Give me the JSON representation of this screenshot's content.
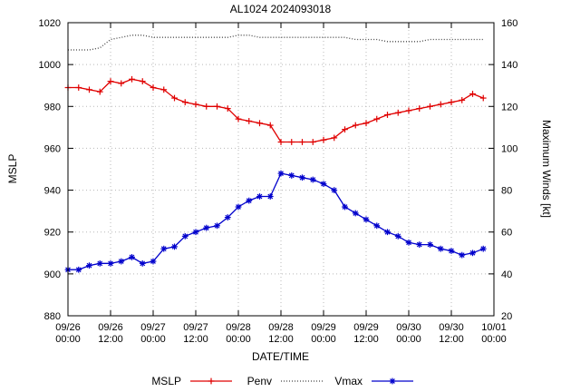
{
  "chart_data": {
    "type": "line",
    "title": "AL1024 2024093018",
    "xlabel": "DATE/TIME",
    "ylabel_left": "MSLP",
    "ylabel_right": "Maximum Winds [kt]",
    "y_left_range": [
      880,
      1020
    ],
    "y_left_ticks": [
      880,
      900,
      920,
      940,
      960,
      980,
      1000,
      1020
    ],
    "y_right_range": [
      20,
      160
    ],
    "y_right_ticks": [
      20,
      40,
      60,
      80,
      100,
      120,
      140,
      160
    ],
    "x_range": [
      0,
      120
    ],
    "x_ticks": [
      {
        "hour": 0,
        "line1": "09/26",
        "line2": "00:00"
      },
      {
        "hour": 12,
        "line1": "09/26",
        "line2": "12:00"
      },
      {
        "hour": 24,
        "line1": "09/27",
        "line2": "00:00"
      },
      {
        "hour": 36,
        "line1": "09/27",
        "line2": "12:00"
      },
      {
        "hour": 48,
        "line1": "09/28",
        "line2": "00:00"
      },
      {
        "hour": 60,
        "line1": "09/28",
        "line2": "12:00"
      },
      {
        "hour": 72,
        "line1": "09/29",
        "line2": "00:00"
      },
      {
        "hour": 84,
        "line1": "09/29",
        "line2": "12:00"
      },
      {
        "hour": 96,
        "line1": "09/30",
        "line2": "00:00"
      },
      {
        "hour": 108,
        "line1": "09/30",
        "line2": "12:00"
      },
      {
        "hour": 120,
        "line1": "10/01",
        "line2": "00:00"
      }
    ],
    "x_hours": [
      0,
      3,
      6,
      9,
      12,
      15,
      18,
      21,
      24,
      27,
      30,
      33,
      36,
      39,
      42,
      45,
      48,
      51,
      54,
      57,
      60,
      63,
      66,
      69,
      72,
      75,
      78,
      81,
      84,
      87,
      90,
      93,
      96,
      99,
      102,
      105,
      108,
      111,
      114,
      117
    ],
    "grid": true,
    "legend_position": "bottom",
    "series": [
      {
        "name": "MSLP",
        "axis": "left",
        "color": "#e00000",
        "marker": "plus",
        "linestyle": "solid",
        "values": [
          989,
          989,
          988,
          987,
          992,
          991,
          993,
          992,
          989,
          988,
          984,
          982,
          981,
          980,
          980,
          979,
          974,
          973,
          972,
          971,
          963,
          963,
          963,
          963,
          964,
          965,
          969,
          971,
          972,
          974,
          976,
          977,
          978,
          979,
          980,
          981,
          982,
          983,
          986,
          984
        ]
      },
      {
        "name": "Penv",
        "axis": "left",
        "color": "#444444",
        "marker": "none",
        "linestyle": "dotted",
        "values": [
          1007,
          1007,
          1007,
          1008,
          1012,
          1013,
          1014,
          1014,
          1013,
          1013,
          1013,
          1013,
          1013,
          1013,
          1013,
          1013,
          1014,
          1014,
          1013,
          1013,
          1013,
          1013,
          1013,
          1013,
          1013,
          1013,
          1013,
          1012,
          1012,
          1012,
          1011,
          1011,
          1011,
          1011,
          1012,
          1012,
          1012,
          1012,
          1012,
          1012
        ]
      },
      {
        "name": "Vmax",
        "axis": "right",
        "color": "#0000cc",
        "marker": "asterisk",
        "linestyle": "solid",
        "values": [
          42,
          42,
          44,
          45,
          45,
          46,
          48,
          45,
          46,
          52,
          53,
          58,
          60,
          62,
          63,
          67,
          72,
          75,
          77,
          77,
          88,
          87,
          86,
          85,
          83,
          80,
          72,
          69,
          66,
          63,
          60,
          58,
          55,
          54,
          54,
          52,
          51,
          49,
          50,
          52
        ]
      }
    ]
  }
}
